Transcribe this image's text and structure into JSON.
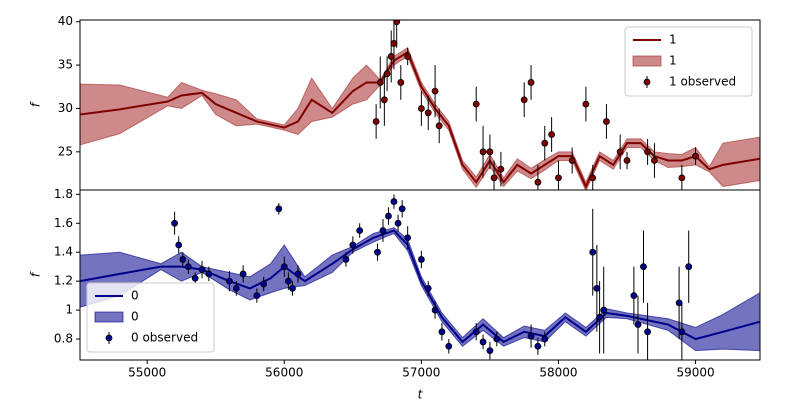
{
  "chart_data": [
    {
      "type": "line",
      "ylabel": "f",
      "xlim": [
        54510,
        59470
      ],
      "ylim": [
        20.6,
        40.2
      ],
      "yticks": [
        25,
        30,
        35,
        40
      ],
      "legend": "upper right",
      "series": [
        {
          "name": "1",
          "kind": "line",
          "color": "#800000",
          "x": [
            54510,
            54800,
            55150,
            55250,
            55400,
            55500,
            55650,
            55800,
            56000,
            56100,
            56200,
            56350,
            56500,
            56600,
            56700,
            56800,
            56900,
            57000,
            57100,
            57200,
            57300,
            57400,
            57500,
            57600,
            57700,
            57800,
            57900,
            58000,
            58100,
            58200,
            58300,
            58400,
            58500,
            58600,
            58700,
            58800,
            58900,
            59000,
            59100,
            59200,
            59470
          ],
          "values": [
            29.3,
            29.9,
            30.8,
            31.5,
            31.8,
            30.5,
            29.5,
            28.5,
            27.8,
            28.5,
            31.0,
            29.5,
            32.0,
            33.0,
            33.0,
            35.5,
            36.5,
            32.5,
            30.0,
            28.0,
            23.5,
            21.5,
            24.0,
            21.5,
            23.5,
            22.5,
            23.5,
            24.5,
            24.5,
            21.0,
            24.5,
            23.5,
            26.0,
            26.0,
            24.5,
            24.0,
            24.0,
            24.5,
            23.0,
            23.5,
            24.2
          ]
        },
        {
          "name": "1",
          "kind": "band",
          "color": "#a52a2a",
          "x": [
            54510,
            54800,
            55150,
            55250,
            55400,
            55500,
            55650,
            55800,
            56000,
            56100,
            56200,
            56350,
            56500,
            56600,
            56700,
            56800,
            56900,
            57000,
            57100,
            57200,
            57300,
            57400,
            57500,
            57600,
            57700,
            57800,
            57900,
            58000,
            58100,
            58200,
            58300,
            58400,
            58500,
            58600,
            58700,
            58800,
            58900,
            59000,
            59100,
            59200,
            59470
          ],
          "lower": [
            25.8,
            27.1,
            30.3,
            30.0,
            31.5,
            29.3,
            28.0,
            28.2,
            27.5,
            27.0,
            28.5,
            29.0,
            30.5,
            31.0,
            32.7,
            35.0,
            36.0,
            32.0,
            29.5,
            27.5,
            23.0,
            20.9,
            23.3,
            21.0,
            22.8,
            21.9,
            22.9,
            24.0,
            24.0,
            20.5,
            24.0,
            23.0,
            25.5,
            25.5,
            24.0,
            23.2,
            23.3,
            23.5,
            22.7,
            21.0,
            21.7
          ],
          "upper": [
            32.8,
            32.7,
            31.3,
            33.0,
            32.1,
            31.7,
            31.0,
            28.8,
            28.1,
            30.0,
            33.5,
            30.0,
            33.5,
            35.0,
            33.3,
            36.0,
            37.0,
            33.0,
            30.5,
            28.5,
            24.0,
            22.1,
            24.7,
            22.0,
            24.2,
            23.1,
            24.1,
            25.0,
            25.0,
            21.5,
            25.0,
            24.0,
            26.5,
            26.5,
            25.0,
            24.8,
            24.7,
            25.5,
            23.3,
            26.0,
            26.7
          ]
        },
        {
          "name": "1 observed",
          "kind": "errorbar",
          "color": "#800000",
          "x": [
            56670,
            56700,
            56730,
            56750,
            56780,
            56800,
            56820,
            56850,
            56900,
            57000,
            57050,
            57100,
            57130,
            57400,
            57450,
            57500,
            57530,
            57580,
            57750,
            57800,
            57850,
            57900,
            57950,
            58000,
            58100,
            58200,
            58250,
            58350,
            58450,
            58500,
            58650,
            58700,
            58900,
            59000
          ],
          "values": [
            28.5,
            33,
            31,
            34,
            36,
            37.5,
            40,
            33,
            36,
            30,
            29.5,
            32,
            28,
            30.5,
            25,
            25,
            22,
            23,
            31,
            33,
            21.5,
            26,
            27,
            22,
            24,
            30.5,
            22,
            28.5,
            25,
            24,
            25,
            24,
            22,
            24.5
          ],
          "errors": [
            2,
            3,
            3,
            2,
            3,
            3,
            3,
            2,
            1,
            2,
            2,
            3,
            2,
            2,
            3,
            2,
            2,
            2,
            2,
            2,
            2,
            2,
            2,
            2,
            1.5,
            2,
            1.5,
            2,
            2,
            1,
            1.5,
            2,
            1.5,
            1
          ]
        }
      ]
    },
    {
      "type": "line",
      "ylabel": "f",
      "xlabel": "t",
      "xlim": [
        54510,
        59470
      ],
      "ylim": [
        0.655,
        1.83
      ],
      "xticks": [
        55000,
        56000,
        57000,
        58000,
        59000
      ],
      "yticks": [
        0.8,
        1.0,
        1.2,
        1.4,
        1.6,
        1.8
      ],
      "legend": "lower left",
      "series": [
        {
          "name": "0",
          "kind": "line",
          "color": "#00008b",
          "x": [
            54510,
            54800,
            55100,
            55250,
            55400,
            55600,
            55750,
            55900,
            56000,
            56150,
            56350,
            56500,
            56650,
            56800,
            56900,
            57000,
            57150,
            57300,
            57450,
            57600,
            57750,
            57900,
            58050,
            58200,
            58350,
            58500,
            58650,
            58800,
            59000,
            59200,
            59470
          ],
          "values": [
            1.2,
            1.25,
            1.3,
            1.3,
            1.28,
            1.2,
            1.15,
            1.22,
            1.3,
            1.2,
            1.32,
            1.42,
            1.5,
            1.55,
            1.45,
            1.2,
            0.95,
            0.78,
            0.9,
            0.78,
            0.85,
            0.82,
            0.95,
            0.85,
            0.98,
            0.96,
            0.93,
            0.9,
            0.8,
            0.85,
            0.92
          ]
        },
        {
          "name": "0",
          "kind": "band",
          "color": "#00008b",
          "x": [
            54510,
            54800,
            55100,
            55250,
            55400,
            55600,
            55750,
            55900,
            56000,
            56150,
            56350,
            56500,
            56650,
            56800,
            56900,
            57000,
            57150,
            57300,
            57450,
            57600,
            57750,
            57900,
            58050,
            58200,
            58350,
            58500,
            58650,
            58800,
            59000,
            59200,
            59470
          ],
          "lower": [
            1.02,
            1.1,
            1.28,
            1.2,
            1.26,
            1.14,
            1.07,
            1.12,
            1.15,
            1.17,
            1.26,
            1.4,
            1.47,
            1.53,
            1.41,
            1.17,
            0.92,
            0.75,
            0.86,
            0.75,
            0.81,
            0.78,
            0.92,
            0.82,
            0.95,
            0.94,
            0.9,
            0.86,
            0.72,
            0.73,
            0.72
          ],
          "upper": [
            1.38,
            1.4,
            1.32,
            1.4,
            1.3,
            1.26,
            1.23,
            1.32,
            1.45,
            1.23,
            1.38,
            1.44,
            1.53,
            1.57,
            1.49,
            1.23,
            0.98,
            0.81,
            0.94,
            0.81,
            0.89,
            0.86,
            0.98,
            0.88,
            1.01,
            0.98,
            0.96,
            0.94,
            0.88,
            0.97,
            1.12
          ]
        },
        {
          "name": "0 observed",
          "kind": "errorbar",
          "color": "#00008b",
          "x": [
            55200,
            55230,
            55260,
            55300,
            55350,
            55400,
            55450,
            55600,
            55650,
            55700,
            55800,
            55850,
            55960,
            56000,
            56030,
            56060,
            56100,
            56450,
            56500,
            56550,
            56680,
            56720,
            56760,
            56800,
            56830,
            56860,
            56900,
            57000,
            57050,
            57100,
            57150,
            57200,
            57400,
            57450,
            57500,
            57550,
            57800,
            57850,
            57900,
            58250,
            58280,
            58300,
            58330,
            58550,
            58580,
            58620,
            58650,
            58880,
            58900,
            58950
          ],
          "values": [
            1.6,
            1.45,
            1.35,
            1.3,
            1.22,
            1.28,
            1.25,
            1.2,
            1.15,
            1.25,
            1.1,
            1.18,
            1.7,
            1.3,
            1.2,
            1.15,
            1.25,
            1.35,
            1.45,
            1.55,
            1.4,
            1.55,
            1.65,
            1.75,
            1.6,
            1.7,
            1.5,
            1.35,
            1.15,
            1.0,
            0.85,
            0.75,
            0.85,
            0.78,
            0.72,
            0.8,
            0.82,
            0.75,
            0.8,
            1.4,
            1.15,
            0.95,
            1.0,
            1.1,
            0.9,
            1.3,
            0.85,
            1.05,
            0.85,
            1.3
          ],
          "errors": [
            0.08,
            0.06,
            0.05,
            0.05,
            0.04,
            0.06,
            0.05,
            0.07,
            0.05,
            0.06,
            0.05,
            0.05,
            0.04,
            0.07,
            0.06,
            0.05,
            0.06,
            0.05,
            0.06,
            0.05,
            0.06,
            0.08,
            0.06,
            0.05,
            0.06,
            0.06,
            0.08,
            0.06,
            0.05,
            0.06,
            0.06,
            0.05,
            0.06,
            0.05,
            0.06,
            0.05,
            0.08,
            0.06,
            0.05,
            0.3,
            0.3,
            0.25,
            0.3,
            0.2,
            0.2,
            0.25,
            0.2,
            0.25,
            0.2,
            0.25
          ]
        }
      ]
    }
  ]
}
